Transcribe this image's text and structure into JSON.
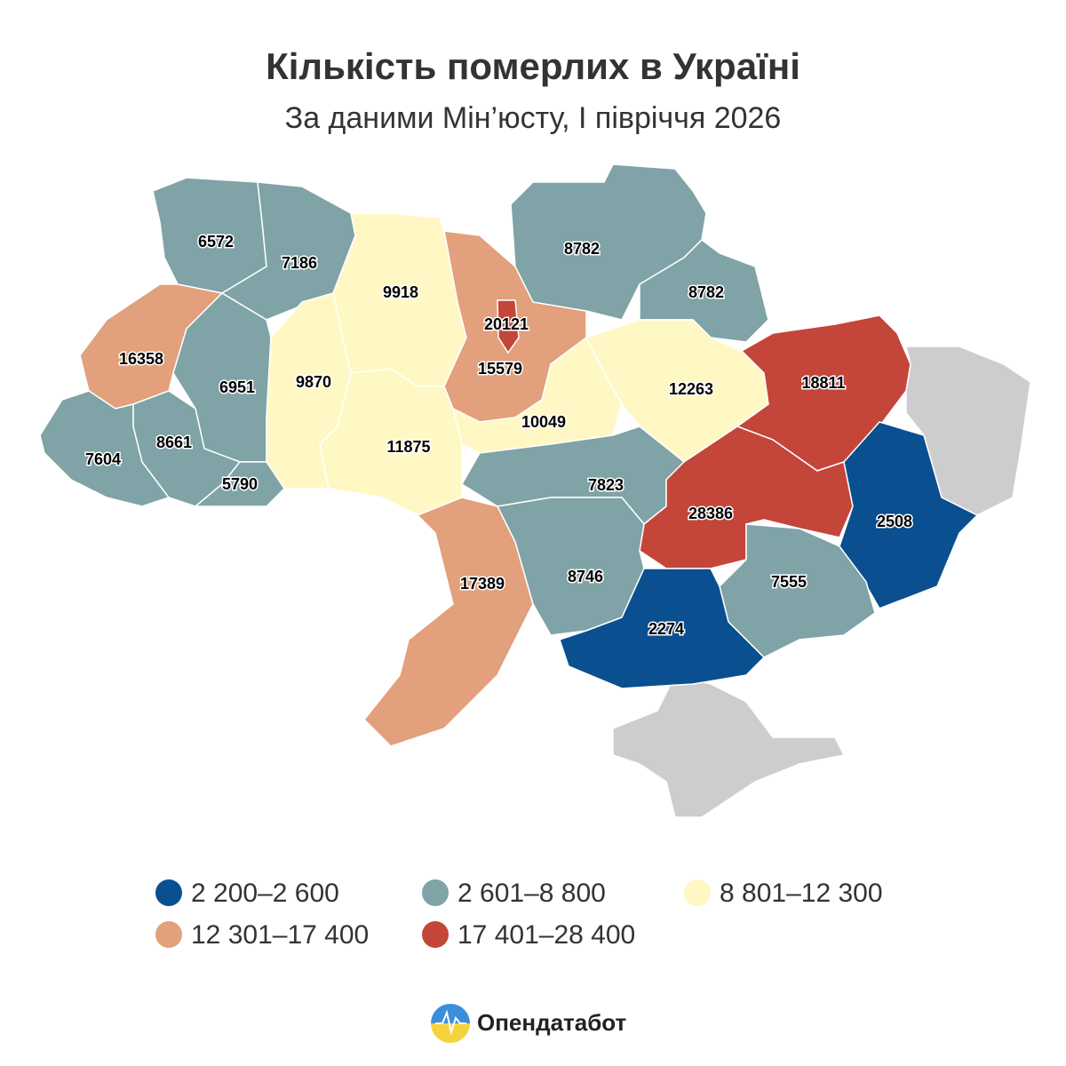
{
  "title": "Кількість померлих в Україні",
  "subtitle": "За даними Мін’юсту, І півріччя 2026",
  "regions": [
    {
      "value": 6572,
      "color": "#7fa3a6"
    },
    {
      "value": 7186,
      "color": "#7fa3a6"
    },
    {
      "value": 9918,
      "color": "#fff8c4"
    },
    {
      "value": 15579,
      "color": "#e2a07c"
    },
    {
      "value": 20121,
      "color": "#c4463a"
    },
    {
      "value": 8782,
      "color": "#7fa3a6"
    },
    {
      "value": 8782,
      "color": "#7fa3a6"
    },
    {
      "value": 16358,
      "color": "#e2a07c"
    },
    {
      "value": 6951,
      "color": "#7fa3a6"
    },
    {
      "value": 9870,
      "color": "#fff8c4"
    },
    {
      "value": 11875,
      "color": "#fff8c4"
    },
    {
      "value": 10049,
      "color": "#fff8c4"
    },
    {
      "value": 12263,
      "color": "#fff8c4"
    },
    {
      "value": 18811,
      "color": "#c4463a"
    },
    {
      "value": 7604,
      "color": "#7fa3a6"
    },
    {
      "value": 8661,
      "color": "#7fa3a6"
    },
    {
      "value": 5790,
      "color": "#7fa3a6"
    },
    {
      "value": 7823,
      "color": "#7fa3a6"
    },
    {
      "value": 28386,
      "color": "#c4463a"
    },
    {
      "value": 2508,
      "color": "#0a4f8f"
    },
    {
      "value": 17389,
      "color": "#e2a07c"
    },
    {
      "value": 8746,
      "color": "#7fa3a6"
    },
    {
      "value": 7555,
      "color": "#7fa3a6"
    },
    {
      "value": 2274,
      "color": "#0a4f8f"
    }
  ],
  "legend": [
    {
      "label": "2 200–2 600",
      "color": "#0a4f8f"
    },
    {
      "label": "2 601–8 800",
      "color": "#7fa3a6"
    },
    {
      "label": "8 801–12 300",
      "color": "#fff8c4"
    },
    {
      "label": "12 301–17 400",
      "color": "#e2a07c"
    },
    {
      "label": "17 401–28 400",
      "color": "#c4463a"
    }
  ],
  "brand": "Опендатабот"
}
